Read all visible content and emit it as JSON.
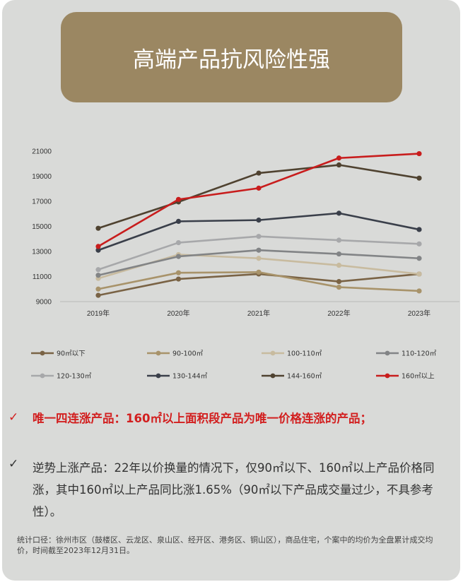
{
  "title": "高端产品抗风险性强",
  "colors": {
    "card_bg": "#d9dad8",
    "banner_bg": "#9b8762",
    "accent_red": "#d21f1f"
  },
  "chart_data": {
    "type": "line",
    "categories": [
      "2019年",
      "2020年",
      "2021年",
      "2022年",
      "2023年"
    ],
    "ylim": [
      9000,
      21000
    ],
    "yticks": [
      9000,
      11000,
      13000,
      15000,
      17000,
      19000,
      21000
    ],
    "grid": false,
    "legend_position": "bottom",
    "series": [
      {
        "name": "90㎡以下",
        "color": "#7a6345",
        "values": [
          9500,
          10800,
          11200,
          10600,
          11200
        ]
      },
      {
        "name": "90-100㎡",
        "color": "#a8936a",
        "values": [
          10000,
          11300,
          11350,
          10150,
          9850
        ]
      },
      {
        "name": "100-110㎡",
        "color": "#c8bb9f",
        "values": [
          10850,
          12750,
          12450,
          11900,
          11200
        ]
      },
      {
        "name": "110-120㎡",
        "color": "#828486",
        "values": [
          11100,
          12600,
          13100,
          12800,
          12450
        ]
      },
      {
        "name": "120-130㎡",
        "color": "#a7a8aa",
        "values": [
          11550,
          13700,
          14200,
          13900,
          13600
        ]
      },
      {
        "name": "130-144㎡",
        "color": "#3a3f4a",
        "values": [
          13100,
          15400,
          15500,
          16050,
          14750
        ]
      },
      {
        "name": "144-160㎡",
        "color": "#4f4230",
        "values": [
          14850,
          16950,
          19250,
          19900,
          18850
        ]
      },
      {
        "name": "160㎡以上",
        "color": "#c81d1d",
        "values": [
          13400,
          17150,
          18050,
          20450,
          20800
        ]
      }
    ]
  },
  "bullets": [
    {
      "check": "✓",
      "text": "唯一四连涨产品：160㎡以上面积段产品为唯一价格连涨的产品；"
    },
    {
      "check": "✓",
      "text": "逆势上涨产品：22年以价换量的情况下，仅90㎡以下、160㎡以上产品价格同涨，其中160㎡以上产品同比涨1.65%（90㎡以下产品成交量过少，不具参考性）。"
    }
  ],
  "footnote": "统计口径：徐州市区（鼓楼区、云龙区、泉山区、经开区、港务区、铜山区），商品住宅，个案中的均价为全盘累计成交均价，时间截至2023年12月31日。"
}
